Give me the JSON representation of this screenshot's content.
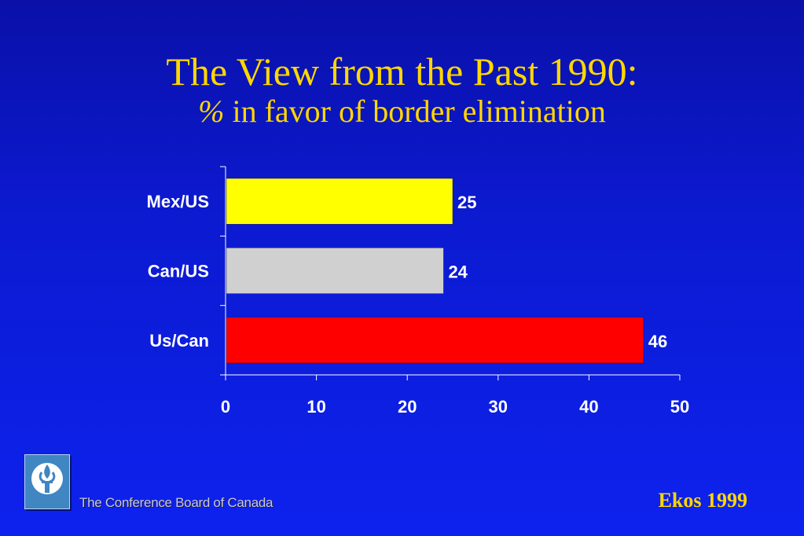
{
  "slide": {
    "title": "The View from the Past 1990:",
    "subtitle_symbol": "%",
    "subtitle_text": " in favor of border elimination",
    "org_name": "The Conference Board of Canada",
    "source": "Ekos 1999",
    "logo_icon": "torch-icon"
  },
  "chart_data": {
    "type": "bar",
    "orientation": "horizontal",
    "title": "The View from the Past 1990: % in favor of border elimination",
    "categories": [
      "Mex/US",
      "Can/US",
      "Us/Can"
    ],
    "values": [
      25,
      24,
      46
    ],
    "value_labels": [
      "25",
      "24",
      "46"
    ],
    "colors": [
      "#ffff00",
      "#d0d0d0",
      "#ff0000"
    ],
    "xlim": [
      0,
      50
    ],
    "xticks": [
      0,
      10,
      20,
      30,
      40,
      50
    ],
    "xtick_labels": [
      "0",
      "10",
      "20",
      "30",
      "40",
      "50"
    ],
    "xlabel": "",
    "ylabel": "",
    "grid": false,
    "legend": "none"
  }
}
